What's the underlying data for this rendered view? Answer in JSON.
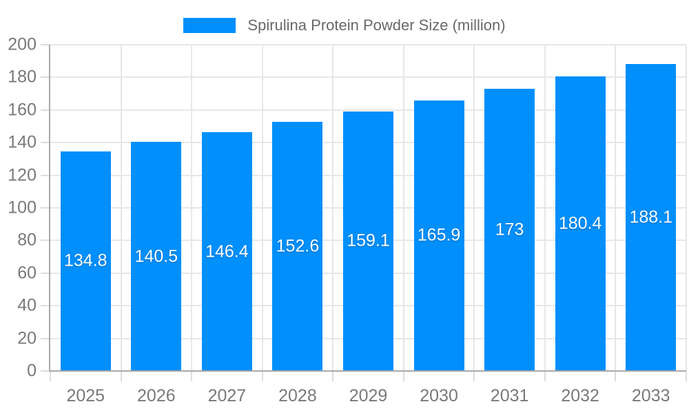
{
  "page": {
    "background": "#ffffff"
  },
  "chart_data": {
    "type": "bar",
    "title": "Spirulina Protein Powder Size (million)",
    "categories": [
      "2025",
      "2026",
      "2027",
      "2028",
      "2029",
      "2030",
      "2031",
      "2032",
      "2033"
    ],
    "values": [
      134.8,
      140.5,
      146.4,
      152.6,
      159.1,
      165.9,
      173,
      180.4,
      188.1
    ],
    "value_labels": [
      "134.8",
      "140.5",
      "146.4",
      "152.6",
      "159.1",
      "165.9",
      "173",
      "180.4",
      "188.1"
    ],
    "xlabel": "",
    "ylabel": "",
    "ylim": [
      0,
      200
    ],
    "ytick_step": 20,
    "ytick_labels": [
      "0",
      "20",
      "40",
      "60",
      "80",
      "100",
      "120",
      "140",
      "160",
      "180",
      "200"
    ],
    "grid": true,
    "legend_position": "top",
    "colors": {
      "bar": "#008FFB",
      "datalabel": "#ffffff",
      "axis_label": "#78797c",
      "legend_label": "#66696c",
      "grid": "#e7e7e7",
      "axis_line": "#a9a9a9",
      "tick": "#dcdcdc"
    }
  }
}
